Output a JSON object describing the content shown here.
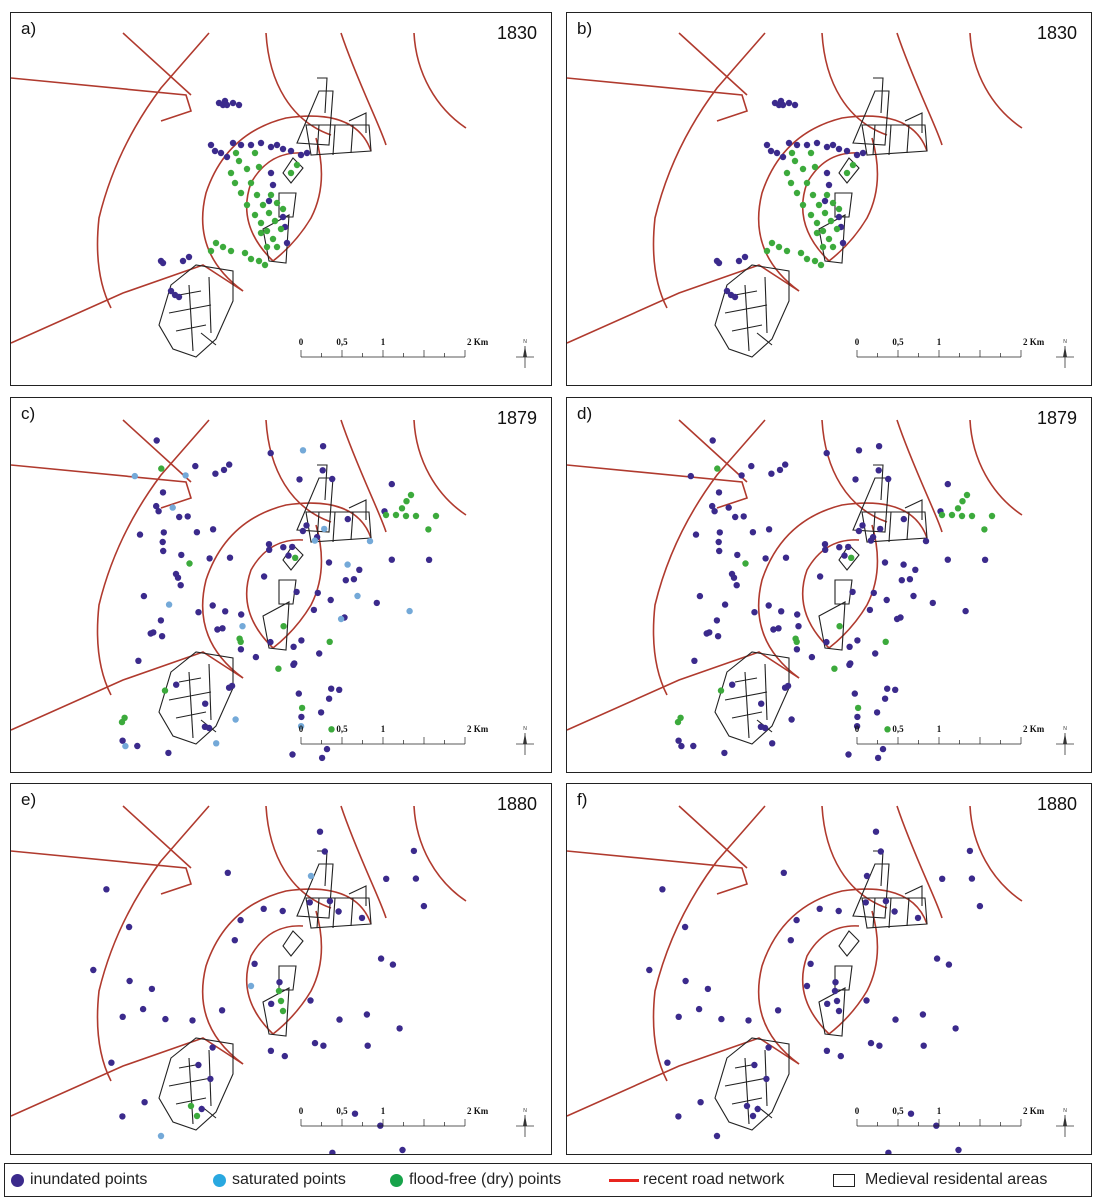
{
  "colors": {
    "inundated": "#3b2a8c",
    "saturated": "#74a9d8",
    "dry": "#3caa3c",
    "road": "#b03a2e",
    "medieval": "#222222"
  },
  "scale_bar": {
    "labels": [
      "0",
      "0,5",
      "1",
      "2 Km"
    ]
  },
  "compass": {
    "label": "N",
    "icon": "north-arrow-icon"
  },
  "panels": [
    {
      "label": "a)",
      "year": "1830",
      "variant": "a"
    },
    {
      "label": "b)",
      "year": "1830",
      "variant": "b"
    },
    {
      "label": "c)",
      "year": "1879",
      "variant": "c"
    },
    {
      "label": "d)",
      "year": "1879",
      "variant": "d"
    },
    {
      "label": "e)",
      "year": "1880",
      "variant": "e"
    },
    {
      "label": "f)",
      "year": "1880",
      "variant": "f"
    }
  ],
  "legend": {
    "inundated": "inundated points",
    "saturated": "saturated points",
    "dry": "flood-free (dry) points",
    "road": "recent road network",
    "medieval": "Medieval residental areas"
  }
}
